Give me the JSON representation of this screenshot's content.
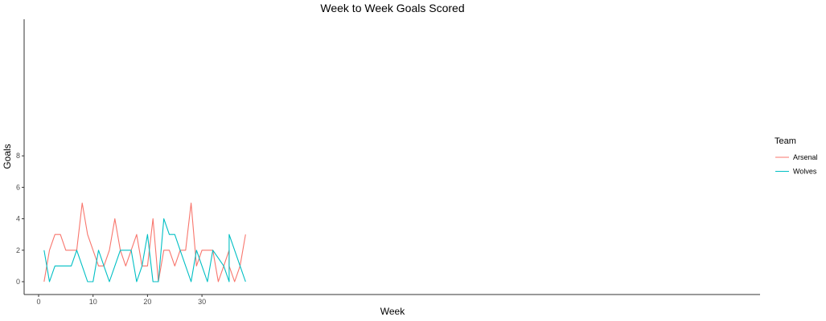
{
  "chart_data": {
    "type": "line",
    "title": "Week to Week Goals Scored",
    "xlabel": "Week",
    "ylabel": "Goals",
    "xlim": [
      0,
      38
    ],
    "ylim": [
      0,
      8
    ],
    "x_ticks": [
      0,
      10,
      20,
      30
    ],
    "y_ticks": [
      0,
      2,
      4,
      6,
      8
    ],
    "grid": false,
    "legend": {
      "title": "Team",
      "position": "right"
    },
    "series": [
      {
        "name": "Arsenal",
        "color": "#F8766D",
        "points": [
          [
            1,
            0
          ],
          [
            2,
            2
          ],
          [
            3,
            3
          ],
          [
            4,
            3
          ],
          [
            5,
            2
          ],
          [
            6,
            2
          ],
          [
            7,
            2
          ],
          [
            8,
            5
          ],
          [
            9,
            3
          ],
          [
            10,
            2
          ],
          [
            11,
            1
          ],
          [
            12,
            1
          ],
          [
            13,
            2
          ],
          [
            14,
            4
          ],
          [
            15,
            2
          ],
          [
            16,
            1
          ],
          [
            17,
            2
          ],
          [
            18,
            3
          ],
          [
            19,
            1
          ],
          [
            20,
            1
          ],
          [
            21,
            4
          ],
          [
            22,
            0
          ],
          [
            23,
            2
          ],
          [
            24,
            2
          ],
          [
            25,
            1
          ],
          [
            26,
            2
          ],
          [
            27,
            2
          ],
          [
            28,
            5
          ],
          [
            29,
            1
          ],
          [
            30,
            2
          ],
          [
            31,
            2
          ],
          [
            32,
            2
          ],
          [
            33,
            0
          ],
          [
            34,
            1
          ],
          [
            35,
            2
          ],
          [
            35,
            1
          ],
          [
            36,
            0
          ],
          [
            37,
            1
          ],
          [
            38,
            3
          ]
        ]
      },
      {
        "name": "Wolves",
        "color": "#00BFC4",
        "points": [
          [
            1,
            2
          ],
          [
            2,
            0
          ],
          [
            3,
            1
          ],
          [
            4,
            1
          ],
          [
            5,
            1
          ],
          [
            6,
            1
          ],
          [
            7,
            2
          ],
          [
            8,
            1
          ],
          [
            9,
            0
          ],
          [
            10,
            0
          ],
          [
            11,
            2
          ],
          [
            12,
            1
          ],
          [
            13,
            0
          ],
          [
            14,
            1
          ],
          [
            15,
            2
          ],
          [
            16,
            2
          ],
          [
            17,
            2
          ],
          [
            18,
            0
          ],
          [
            19,
            1
          ],
          [
            20,
            3
          ],
          [
            21,
            0
          ],
          [
            22,
            0
          ],
          [
            23,
            4
          ],
          [
            24,
            3
          ],
          [
            25,
            3
          ],
          [
            26,
            2
          ],
          [
            27,
            1
          ],
          [
            28,
            0
          ],
          [
            29,
            2
          ],
          [
            30,
            1
          ],
          [
            31,
            0
          ],
          [
            32,
            2
          ],
          [
            33,
            1.5
          ],
          [
            34,
            1
          ],
          [
            35,
            0
          ],
          [
            35,
            3
          ],
          [
            36,
            2
          ],
          [
            37,
            1
          ],
          [
            38,
            0
          ]
        ]
      }
    ]
  }
}
